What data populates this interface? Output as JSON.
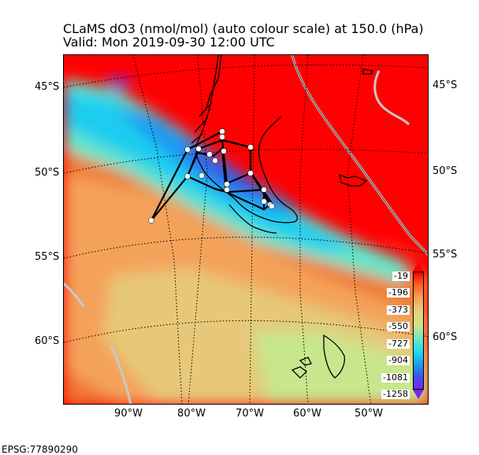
{
  "title": {
    "line1": "CLaMS dO3 (nmol/mol) (auto colour scale) at 150.0 (hPa)",
    "line2": "Valid: Mon 2019-09-30 12:00 UTC"
  },
  "map": {
    "lat_labels_left": [
      "45°S",
      "50°S",
      "55°S",
      "60°S"
    ],
    "lat_labels_right": [
      "45°S",
      "50°S",
      "55°S",
      "60°S"
    ],
    "lon_labels": [
      "90°W",
      "80°W",
      "70°W",
      "60°W",
      "50°W"
    ],
    "projection_label": "EPSG:77890290",
    "colors": {
      "high": "#ff0000",
      "mid": "#f4a25a",
      "low": "#1ec8f0",
      "min": "#7828e6",
      "coast": "#000000",
      "contour": "#c8c8c8",
      "track": "#000000",
      "points": "#ffffff"
    }
  },
  "colorbar": {
    "ticks": [
      "-19",
      "-196",
      "-373",
      "-550",
      "-727",
      "-904",
      "-1081",
      "-1258"
    ]
  }
}
